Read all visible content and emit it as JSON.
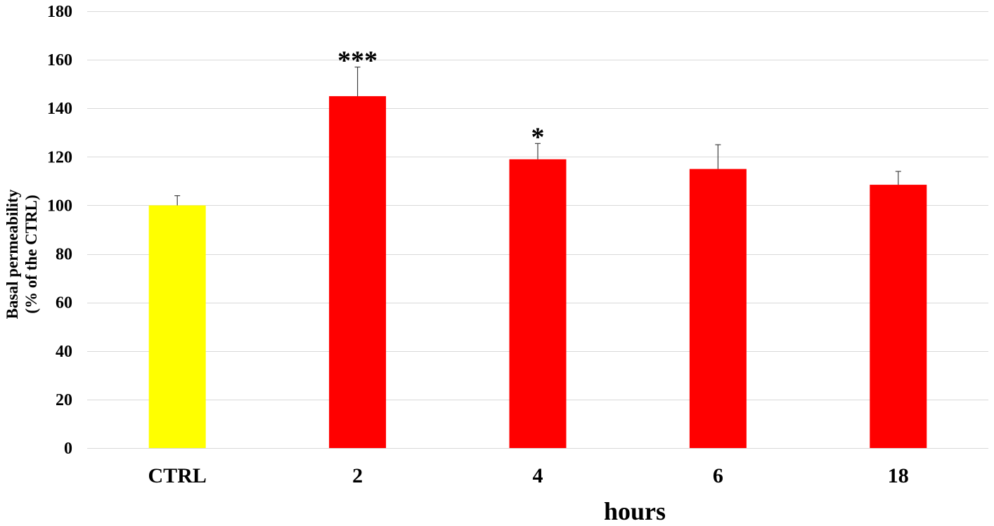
{
  "chart_data": {
    "type": "bar",
    "categories": [
      "CTRL",
      "2",
      "4",
      "6",
      "18"
    ],
    "values": [
      100,
      145,
      119,
      115,
      108.5
    ],
    "error_upper": [
      4,
      12,
      6.5,
      10,
      5.5
    ],
    "annotations": [
      "",
      "***",
      "*",
      "",
      ""
    ],
    "bar_colors": [
      "#FFFF00",
      "#FF0000",
      "#FF0000",
      "#FF0000",
      "#FF0000"
    ],
    "xlabel": "hours",
    "ylabel": [
      "Basal permeability",
      "(% of the CTRL)"
    ],
    "ylim": [
      0,
      180
    ],
    "yticks": [
      0,
      20,
      40,
      60,
      80,
      100,
      120,
      140,
      160,
      180
    ],
    "grid": true,
    "grid_color": "#D9D9D9",
    "error_bar_color": "#404040"
  }
}
